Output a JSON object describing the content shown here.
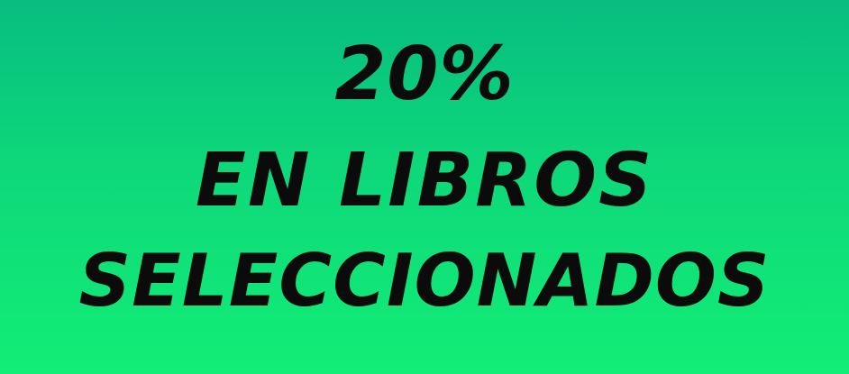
{
  "banner": {
    "line1": "20%",
    "line2": "EN LIBROS",
    "line3": "SELECCIONADOS",
    "colors": {
      "background_top": "#07bd80",
      "background_bottom": "#12ee76",
      "text": "#0b0b0b"
    }
  }
}
